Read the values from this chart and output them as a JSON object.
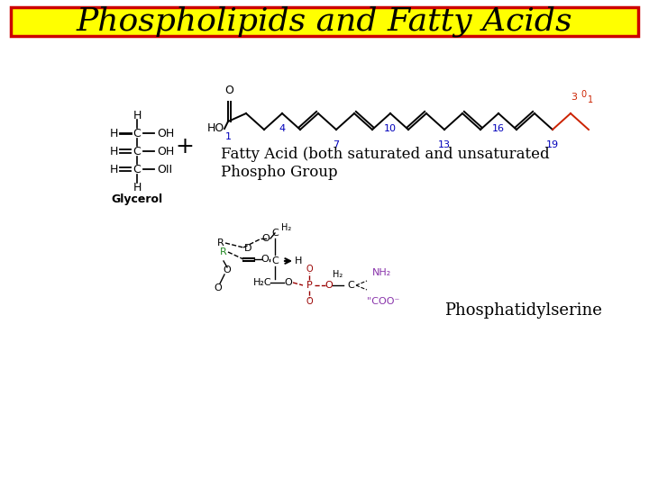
{
  "title": "Phospholipids and Fatty Acids",
  "title_bg": "#FFFF00",
  "title_border": "#CC0000",
  "title_fontsize": 26,
  "bg_color": "#FFFFFF",
  "fatty_acid_text": "Fatty Acid (both saturated and unsaturated",
  "phospho_text": "Phospho Group",
  "phosphatidylserine_text": "Phosphatidylserine",
  "glycerol_text": "Glycerol",
  "blue_color": "#0000BB",
  "red_color": "#CC2200",
  "purple_color": "#8833AA",
  "dark_red": "#990000",
  "black_color": "#000000"
}
